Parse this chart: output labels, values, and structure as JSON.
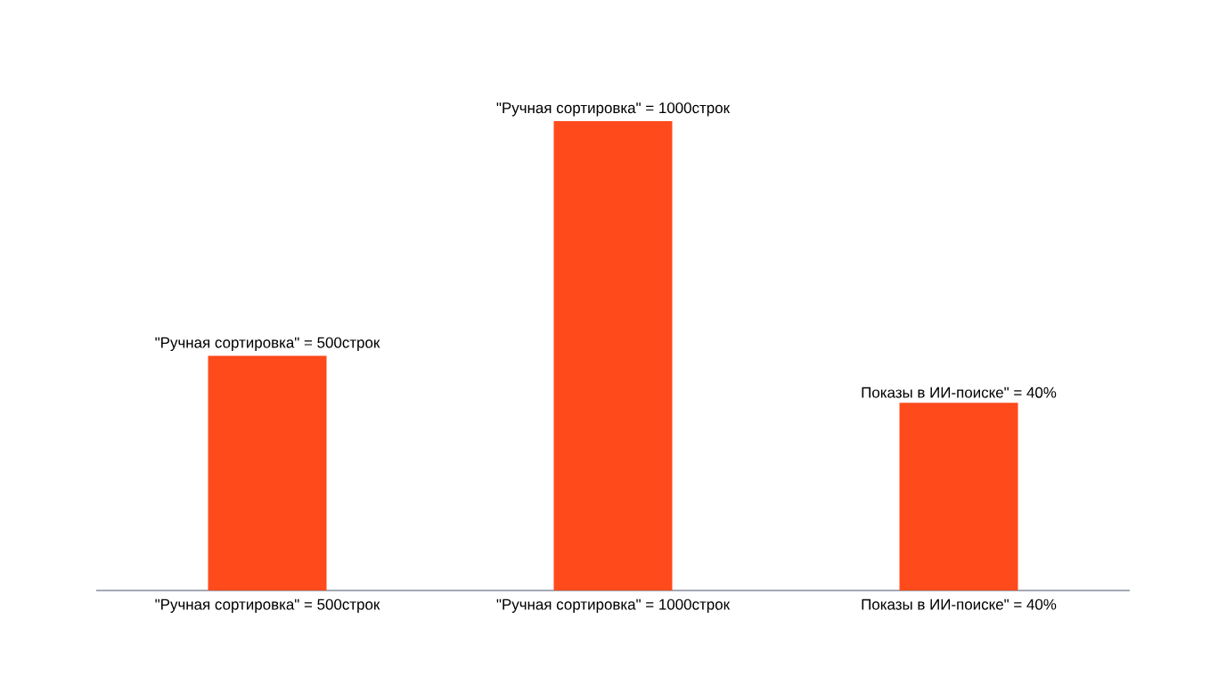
{
  "chart_data": {
    "type": "bar",
    "categories": [
      "\"Ручная сортировка\" = 500строк",
      "\"Ручная сортировка\" = 1000строк",
      "Показы в ИИ-поиске\" = 40%"
    ],
    "series": [
      {
        "color": "#ff4a1c",
        "values": [
          500,
          1000,
          null
        ],
        "value_labels": [
          "\"Ручная сортировка\" = 500строк",
          "\"Ручная сортировка\" = 1000строк",
          null
        ]
      },
      {
        "color": "#ff4a1c",
        "axis": "y2",
        "values": [
          null,
          null,
          40
        ],
        "value_labels": [
          null,
          null,
          "Показы в ИИ-поиске\" = 40%"
        ]
      }
    ],
    "ylim": [
      0,
      1000
    ],
    "y2lim": [
      0,
      100
    ],
    "tick_labels": "x"
  }
}
